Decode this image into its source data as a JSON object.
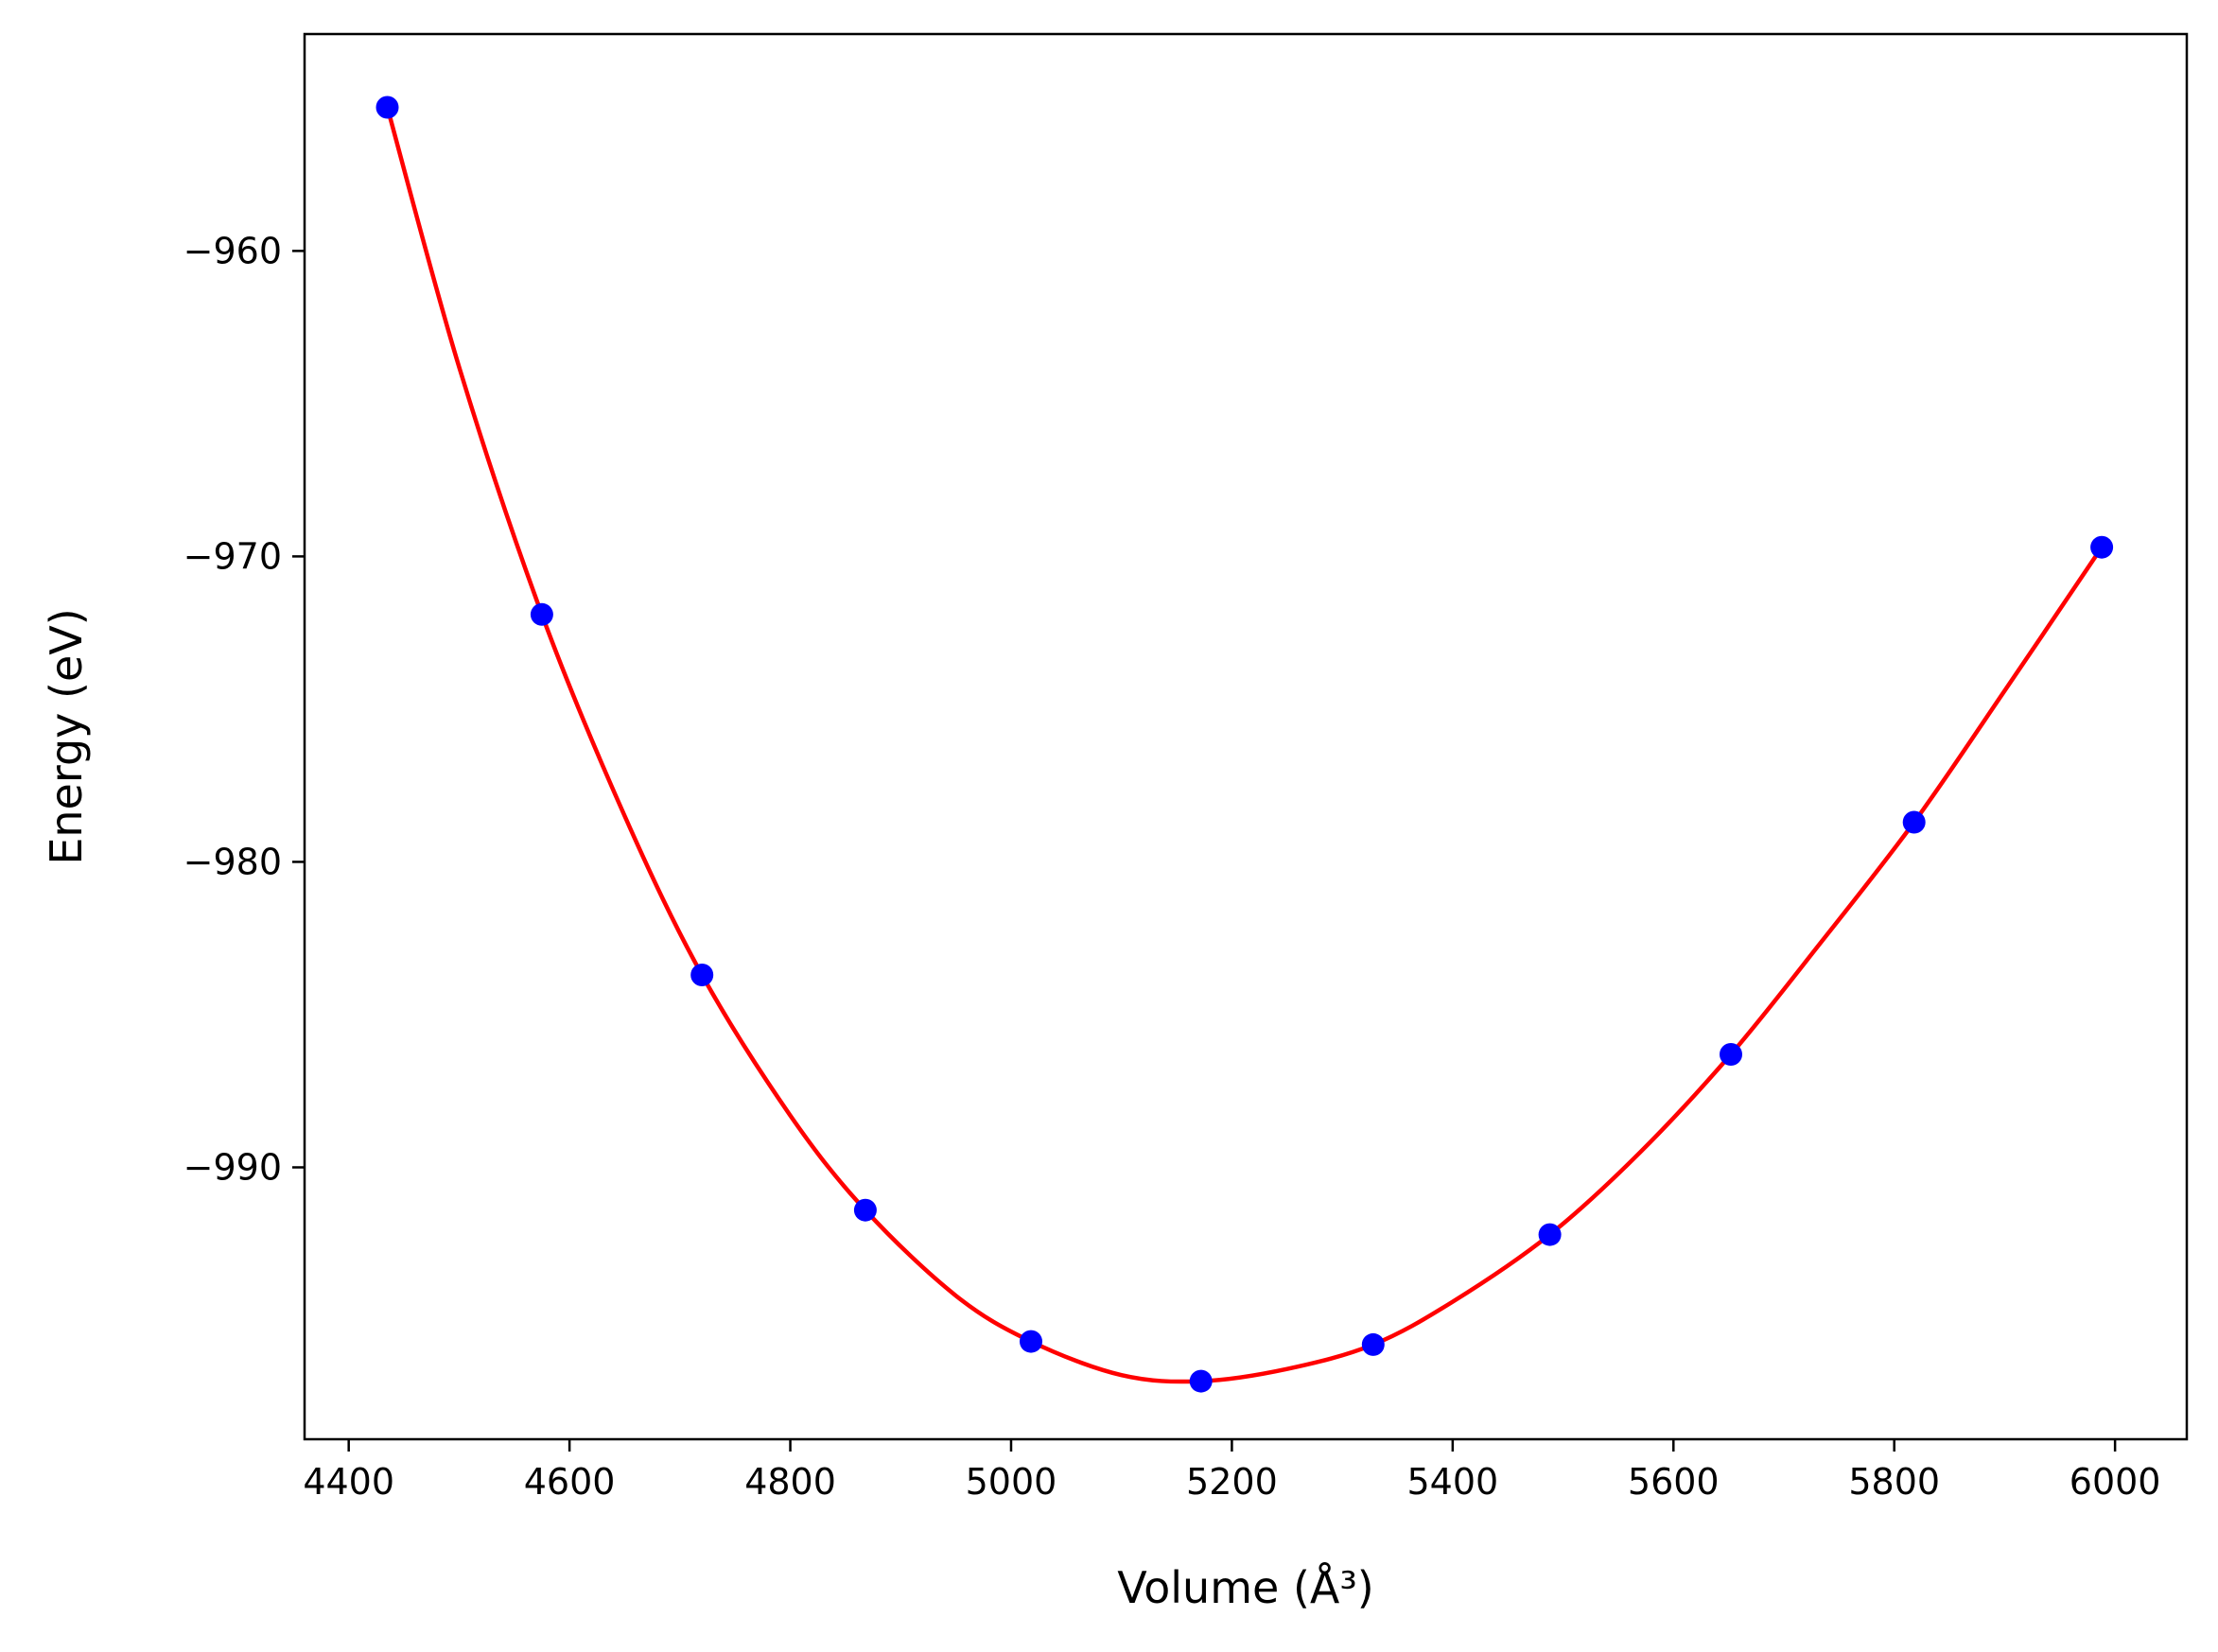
{
  "chart_data": {
    "type": "scatter",
    "xlabel": "Volume (Å³)",
    "ylabel": "Energy (eV)",
    "xlim": [
      4360,
      6065
    ],
    "ylim": [
      -998.9,
      -952.9
    ],
    "xticks": [
      4400,
      4600,
      4800,
      5000,
      5200,
      5400,
      5600,
      5800,
      6000
    ],
    "yticks": [
      -960,
      -970,
      -980,
      -990
    ],
    "grid": false,
    "legend": "none",
    "series": [
      {
        "kind": "points",
        "color": "#0000ff",
        "x": [
          4435,
          4575,
          4720,
          4868,
          5018,
          5172,
          5328,
          5488,
          5652,
          5818,
          5988
        ],
        "y": [
          -955.3,
          -971.9,
          -983.7,
          -991.4,
          -995.7,
          -997.0,
          -995.8,
          -992.2,
          -986.3,
          -978.7,
          -969.7
        ]
      },
      {
        "kind": "fit-curve",
        "color": "#ff0000",
        "x": [
          4435,
          4500,
          4575,
          4650,
          4720,
          4800,
          4868,
          4950,
          5018,
          5100,
          5172,
          5250,
          5328,
          5400,
          5488,
          5570,
          5652,
          5730,
          5818,
          5900,
          5988
        ],
        "y": [
          -955.3,
          -963.8,
          -971.9,
          -978.5,
          -983.7,
          -988.3,
          -991.4,
          -994.2,
          -995.7,
          -996.8,
          -997.0,
          -996.6,
          -995.8,
          -994.4,
          -992.2,
          -989.5,
          -986.3,
          -982.8,
          -978.7,
          -974.4,
          -969.7
        ]
      }
    ]
  }
}
